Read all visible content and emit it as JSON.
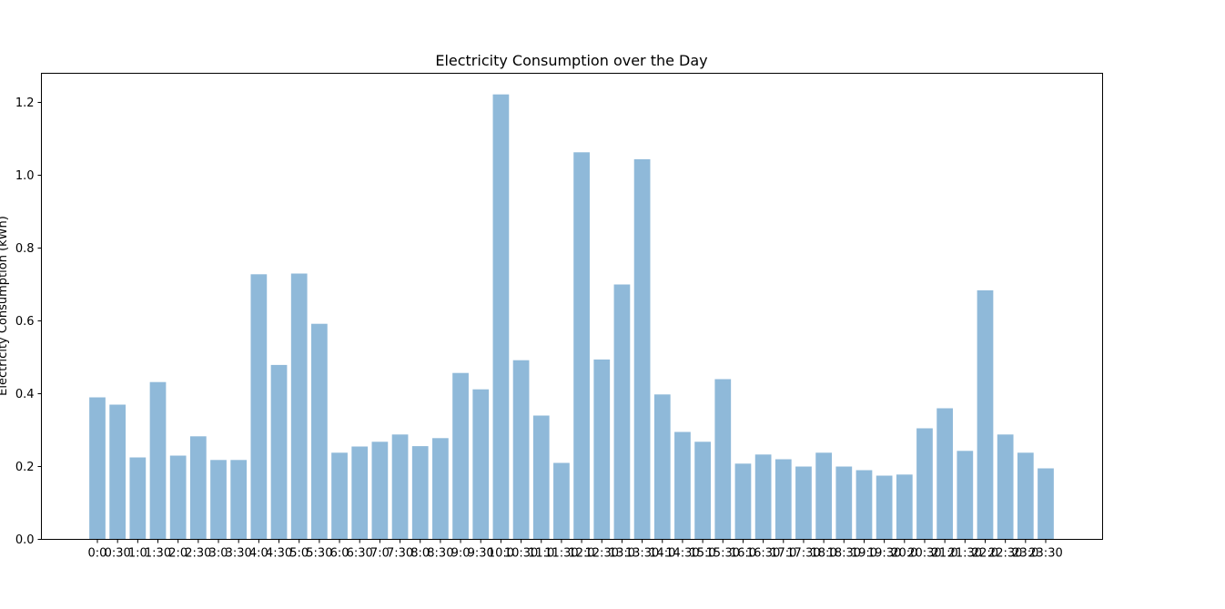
{
  "chart_data": {
    "type": "bar",
    "title": "Electricity Consumption over the Day",
    "xlabel": "",
    "ylabel": "Electricity Consumption (kWh)",
    "ylim": [
      0,
      1.28
    ],
    "yticks": [
      0.0,
      0.2,
      0.4,
      0.6,
      0.8,
      1.0,
      1.2
    ],
    "ytick_labels": [
      "0.0",
      "0.2",
      "0.4",
      "0.6",
      "0.8",
      "1.0",
      "1.2"
    ],
    "grid": false,
    "bar_color": "#8fb9d9",
    "categories": [
      "0:0",
      "0:30",
      "1:0",
      "1:30",
      "2:0",
      "2:30",
      "3:0",
      "3:30",
      "4:0",
      "4:30",
      "5:0",
      "5:30",
      "6:0",
      "6:30",
      "7:0",
      "7:30",
      "8:0",
      "8:30",
      "9:0",
      "9:30",
      "10:0",
      "10:30",
      "11:0",
      "11:30",
      "12:0",
      "12:30",
      "13:0",
      "13:30",
      "14:0",
      "14:30",
      "15:0",
      "15:30",
      "16:0",
      "16:30",
      "17:0",
      "17:30",
      "18:0",
      "18:30",
      "19:0",
      "19:30",
      "20:0",
      "20:30",
      "21:0",
      "21:30",
      "22:0",
      "22:30",
      "23:0",
      "23:30"
    ],
    "values": [
      0.39,
      0.37,
      0.225,
      0.432,
      0.23,
      0.283,
      0.218,
      0.218,
      0.728,
      0.479,
      0.73,
      0.592,
      0.238,
      0.255,
      0.268,
      0.288,
      0.256,
      0.278,
      0.457,
      0.412,
      1.222,
      0.492,
      0.34,
      0.21,
      1.063,
      0.494,
      0.7,
      1.044,
      0.398,
      0.295,
      0.268,
      0.44,
      0.208,
      0.233,
      0.22,
      0.2,
      0.238,
      0.2,
      0.19,
      0.175,
      0.178,
      0.305,
      0.36,
      0.243,
      0.684,
      0.288,
      0.238,
      0.195
    ]
  }
}
